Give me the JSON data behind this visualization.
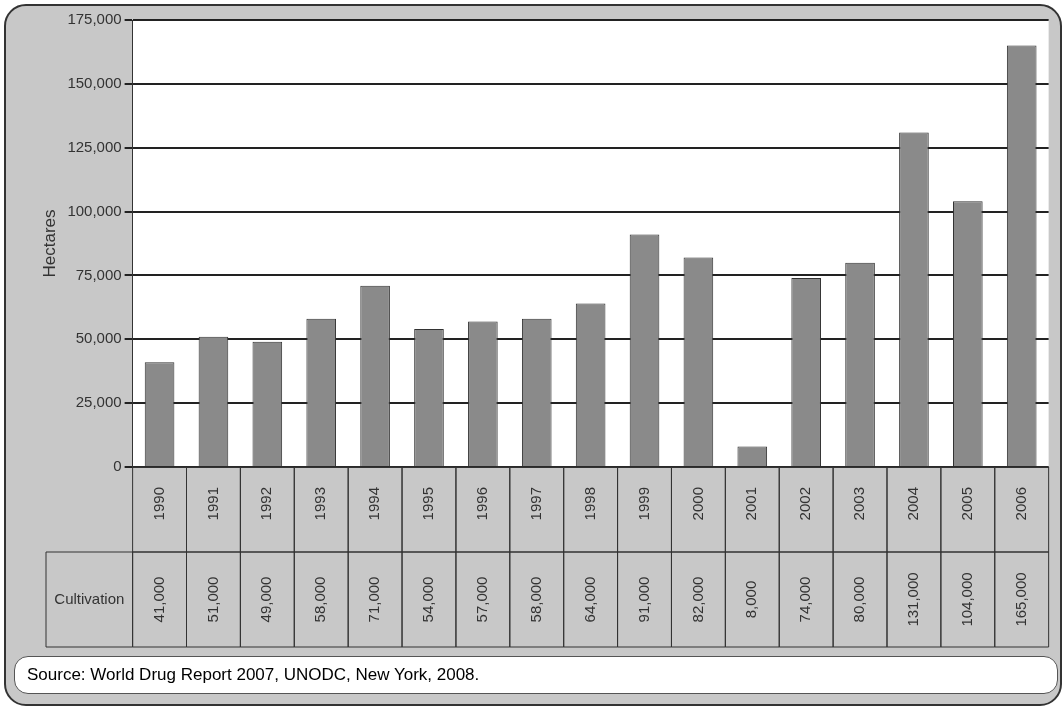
{
  "chart_data": {
    "type": "bar",
    "ylabel": "Hectares",
    "categories": [
      "1990",
      "1991",
      "1992",
      "1993",
      "1994",
      "1995",
      "1996",
      "1997",
      "1998",
      "1999",
      "2000",
      "2001",
      "2002",
      "2003",
      "2004",
      "2005",
      "2006"
    ],
    "series": [
      {
        "name": "Cultivation",
        "color": "#8a8a8a",
        "values": [
          41000,
          51000,
          49000,
          58000,
          71000,
          54000,
          57000,
          58000,
          64000,
          91000,
          82000,
          8000,
          74000,
          80000,
          131000,
          104000,
          165000
        ],
        "value_labels": [
          "41,000",
          "51,000",
          "49,000",
          "58,000",
          "71,000",
          "54,000",
          "57,000",
          "58,000",
          "64,000",
          "91,000",
          "82,000",
          "8,000",
          "74,000",
          "80,000",
          "131,000",
          "104,000",
          "165,000"
        ]
      }
    ],
    "ylim": [
      0,
      175000
    ],
    "yticks": [
      0,
      {
        "value": 25000,
        "label": "25,000"
      },
      {
        "value": 50000,
        "label": "50,000"
      },
      {
        "value": 75000,
        "label": "75,000"
      },
      {
        "value": 100000,
        "label": "100,000"
      },
      {
        "value": 125000,
        "label": "125,000"
      },
      {
        "value": 150000,
        "label": "150,000"
      },
      {
        "value": 175000,
        "label": "175,000"
      }
    ],
    "grid": "y",
    "annotations": [
      "Source: World Drug Report 2007, UNODC, New York, 2008."
    ]
  }
}
